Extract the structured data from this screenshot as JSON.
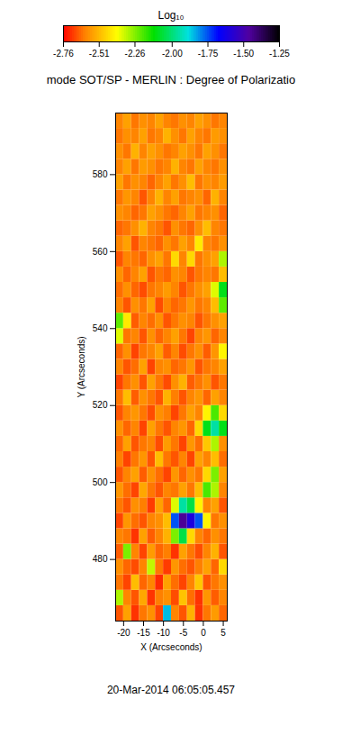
{
  "chart_data": {
    "type": "heatmap",
    "title": "mode SOT/SP - MERLIN : Degree of Polarizatio",
    "colorbar_label": "Log₁₀",
    "x_label": "X (Arcseconds)",
    "y_label": "Y (Arcseconds)",
    "caption": "20-Mar-2014 06:05:05.457",
    "xlim": [
      -22,
      6
    ],
    "ylim": [
      464,
      596
    ],
    "xticks": [
      -20,
      -15,
      -10,
      -5,
      0,
      5
    ],
    "yticks": [
      480,
      500,
      520,
      540,
      560,
      580
    ],
    "zlim": [
      -2.76,
      -1.25
    ],
    "zticks": [
      -2.76,
      -2.51,
      -2.26,
      {
        "value": -2,
        "label": "-2.00"
      },
      -1.75,
      {
        "value": -1.5,
        "label": "-1.50"
      },
      -1.25
    ],
    "x_edges": [
      -22,
      -20,
      -18,
      -16,
      -14,
      -12,
      -10,
      -8,
      -6,
      -4,
      -2,
      0,
      2,
      4,
      6
    ],
    "y_edges": [
      464,
      468,
      472,
      476,
      480,
      484,
      488,
      492,
      496,
      500,
      504,
      508,
      512,
      516,
      520,
      524,
      528,
      532,
      536,
      540,
      544,
      548,
      552,
      556,
      560,
      564,
      568,
      572,
      576,
      580,
      584,
      588,
      592,
      596
    ],
    "z": [
      [
        -2.66,
        -2.55,
        -2.7,
        -2.62,
        -2.58,
        -2.68,
        -1.85,
        -2.6,
        -2.66,
        -2.52,
        -2.7,
        -2.62,
        -2.56,
        -2.64
      ],
      [
        -2.3,
        -2.6,
        -2.66,
        -2.54,
        -2.7,
        -2.61,
        -2.58,
        -2.67,
        -2.49,
        -2.63,
        -2.7,
        -2.57,
        -2.65,
        -2.6
      ],
      [
        -2.62,
        -2.68,
        -2.5,
        -2.64,
        -2.6,
        -2.71,
        -2.55,
        -2.63,
        -2.68,
        -2.6,
        -2.48,
        -2.66,
        -2.62,
        -2.58
      ],
      [
        -2.58,
        -2.64,
        -2.67,
        -2.6,
        -2.32,
        -2.62,
        -2.69,
        -2.57,
        -2.63,
        -2.66,
        -2.61,
        -2.55,
        -2.64,
        -2.45
      ],
      [
        -2.65,
        -2.25,
        -2.6,
        -2.68,
        -2.56,
        -2.64,
        -2.61,
        -2.7,
        -2.55,
        -2.62,
        -2.67,
        -2.6,
        -2.52,
        -2.66
      ],
      [
        -2.6,
        -2.62,
        -2.7,
        -2.55,
        -2.65,
        -2.6,
        -2.52,
        -2.25,
        -2.05,
        -2.45,
        -2.6,
        -2.64,
        -2.58,
        -2.62
      ],
      [
        -2.68,
        -2.57,
        -2.63,
        -2.66,
        -2.6,
        -2.58,
        -2.5,
        -1.75,
        -1.45,
        -1.6,
        -1.75,
        -2.4,
        -2.62,
        -2.58
      ],
      [
        -2.62,
        -2.66,
        -2.58,
        -2.61,
        -2.69,
        -2.55,
        -2.64,
        -2.35,
        -1.95,
        -2.05,
        -2.4,
        -2.6,
        -2.55,
        -2.66
      ],
      [
        -2.57,
        -2.63,
        -2.68,
        -2.54,
        -2.62,
        -2.66,
        -2.6,
        -2.62,
        -2.55,
        -2.62,
        -2.5,
        -2.2,
        -2.3,
        -2.6
      ],
      [
        -2.66,
        -2.6,
        -2.55,
        -2.65,
        -2.58,
        -2.63,
        -2.68,
        -2.57,
        -2.64,
        -2.58,
        -2.62,
        -2.45,
        -2.25,
        -2.55
      ],
      [
        -2.61,
        -2.68,
        -2.62,
        -2.57,
        -2.66,
        -2.5,
        -2.62,
        -2.66,
        -2.6,
        -2.68,
        -2.55,
        -2.6,
        -2.5,
        -2.63
      ],
      [
        -2.64,
        -2.55,
        -2.66,
        -2.62,
        -2.6,
        -2.67,
        -2.56,
        -2.62,
        -2.68,
        -2.57,
        -2.63,
        -2.48,
        -2.3,
        -2.58
      ],
      [
        -2.58,
        -2.64,
        -2.6,
        -2.68,
        -2.55,
        -2.62,
        -2.66,
        -2.6,
        -2.57,
        -2.64,
        -2.45,
        -2.1,
        -1.95,
        -2.1
      ],
      [
        -2.66,
        -2.6,
        -2.57,
        -2.62,
        -2.67,
        -2.58,
        -2.61,
        -2.68,
        -2.62,
        -2.55,
        -2.6,
        -2.4,
        -2.2,
        -2.45
      ],
      [
        -2.62,
        -2.5,
        -2.65,
        -2.58,
        -2.62,
        -2.66,
        -2.52,
        -2.61,
        -2.66,
        -2.6,
        -2.57,
        -2.64,
        -2.55,
        -2.6
      ],
      [
        -2.68,
        -2.62,
        -2.58,
        -2.66,
        -2.55,
        -2.62,
        -2.67,
        -2.58,
        -2.52,
        -2.65,
        -2.62,
        -2.58,
        -2.66,
        -2.62
      ],
      [
        -2.6,
        -2.66,
        -2.63,
        -2.55,
        -2.68,
        -2.6,
        -2.58,
        -2.64,
        -2.62,
        -2.57,
        -2.66,
        -2.62,
        -2.6,
        -2.55
      ],
      [
        -2.64,
        -2.58,
        -2.68,
        -2.62,
        -2.6,
        -2.55,
        -2.65,
        -2.6,
        -2.67,
        -2.62,
        -2.58,
        -2.65,
        -2.57,
        -2.4
      ],
      [
        -2.35,
        -2.62,
        -2.6,
        -2.66,
        -2.58,
        -2.64,
        -2.6,
        -2.55,
        -2.62,
        -2.68,
        -2.6,
        -2.57,
        -2.64,
        -2.6
      ],
      [
        -2.22,
        -2.42,
        -2.65,
        -2.6,
        -2.63,
        -2.58,
        -2.66,
        -2.62,
        -2.58,
        -2.6,
        -2.66,
        -2.62,
        -2.58,
        -2.55
      ],
      [
        -2.6,
        -2.66,
        -2.58,
        -2.62,
        -2.55,
        -2.67,
        -2.6,
        -2.64,
        -2.62,
        -2.57,
        -2.62,
        -2.6,
        -2.5,
        -2.22
      ],
      [
        -2.63,
        -2.58,
        -2.64,
        -2.67,
        -2.62,
        -2.6,
        -2.56,
        -2.6,
        -2.66,
        -2.62,
        -2.58,
        -2.55,
        -2.35,
        -2.1
      ],
      [
        -2.58,
        -2.64,
        -2.6,
        -2.55,
        -2.66,
        -2.62,
        -2.64,
        -2.58,
        -2.6,
        -2.66,
        -2.62,
        -2.6,
        -2.62,
        -2.5
      ],
      [
        -2.66,
        -2.6,
        -2.62,
        -2.64,
        -2.58,
        -2.55,
        -2.62,
        -2.45,
        -2.6,
        -2.45,
        -2.62,
        -2.58,
        -2.55,
        -2.3
      ],
      [
        -2.6,
        -2.55,
        -2.66,
        -2.6,
        -2.62,
        -2.64,
        -2.58,
        -2.62,
        -2.55,
        -2.6,
        -2.42,
        -2.6,
        -2.62,
        -2.58
      ],
      [
        -2.64,
        -2.62,
        -2.58,
        -2.52,
        -2.6,
        -2.62,
        -2.66,
        -2.58,
        -2.62,
        -2.64,
        -2.58,
        -2.5,
        -2.6,
        -2.62
      ],
      [
        -2.58,
        -2.6,
        -2.64,
        -2.62,
        -2.55,
        -2.58,
        -2.62,
        -2.64,
        -2.6,
        -2.55,
        -2.62,
        -2.6,
        -2.58,
        -2.64
      ],
      [
        -2.62,
        -2.57,
        -2.6,
        -2.66,
        -2.6,
        -2.52,
        -2.6,
        -2.55,
        -2.62,
        -2.6,
        -2.58,
        -2.64,
        -2.52,
        -2.6
      ],
      [
        -2.55,
        -2.62,
        -2.58,
        -2.6,
        -2.64,
        -2.6,
        -2.55,
        -2.62,
        -2.58,
        -2.5,
        -2.62,
        -2.58,
        -2.6,
        -2.56
      ],
      [
        -2.6,
        -2.55,
        -2.62,
        -2.56,
        -2.58,
        -2.62,
        -2.6,
        -2.52,
        -2.6,
        -2.62,
        -2.55,
        -2.6,
        -2.62,
        -2.58
      ],
      [
        -2.58,
        -2.62,
        -2.52,
        -2.6,
        -2.55,
        -2.58,
        -2.62,
        -2.6,
        -2.55,
        -2.58,
        -2.62,
        -2.55,
        -2.58,
        -2.62
      ],
      [
        -2.62,
        -2.58,
        -2.6,
        -2.55,
        -2.62,
        -2.6,
        -2.52,
        -2.58,
        -2.62,
        -2.55,
        -2.6,
        -2.62,
        -2.56,
        -2.58
      ],
      [
        -2.6,
        -2.55,
        -2.62,
        -2.58,
        -2.6,
        -2.55,
        -2.6,
        -2.62,
        -2.58,
        -2.6,
        -2.55,
        -2.58,
        -2.62,
        -2.6
      ]
    ]
  }
}
